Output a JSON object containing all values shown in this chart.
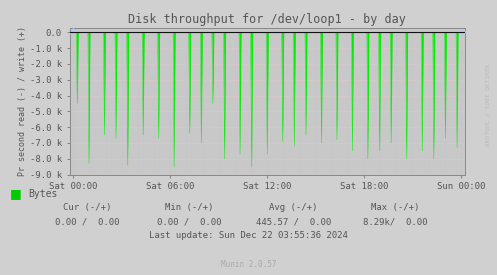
{
  "title": "Disk throughput for /dev/loop1 - by day",
  "ylabel": "Pr second read (-) / write (+)",
  "ylim": [
    -9000,
    300
  ],
  "yticks": [
    0,
    -1000,
    -2000,
    -3000,
    -4000,
    -5000,
    -6000,
    -7000,
    -8000,
    -9000
  ],
  "ytick_labels": [
    "0.0",
    "-1.0 k",
    "-2.0 k",
    "-3.0 k",
    "-4.0 k",
    "-5.0 k",
    "-6.0 k",
    "-7.0 k",
    "-8.0 k",
    "-9.0 k"
  ],
  "xtick_positions": [
    0.0,
    0.25,
    0.5,
    0.75,
    1.0
  ],
  "xtick_labels": [
    "Sat 00:00",
    "Sat 06:00",
    "Sat 12:00",
    "Sat 18:00",
    "Sun 00:00"
  ],
  "bg_color": "#d0d0d0",
  "plot_bg_color": "#c8c8c8",
  "grid_h_color": "#e8c8c8",
  "grid_v_color": "#c0c0d8",
  "line_color": "#00ee00",
  "border_color": "#888888",
  "title_color": "#555555",
  "label_color": "#555555",
  "tick_color": "#555555",
  "watermark_color": "#bbbbbb",
  "legend_color": "#00cc00",
  "footer_munin_color": "#aaaaaa",
  "watermark": "RRDTOOL / TOBI OETIKER",
  "footer_munin": "Munin 2.0.57",
  "spike_positions": [
    0.01,
    0.04,
    0.08,
    0.11,
    0.14,
    0.18,
    0.22,
    0.26,
    0.3,
    0.33,
    0.36,
    0.39,
    0.43,
    0.46,
    0.5,
    0.54,
    0.57,
    0.6,
    0.64,
    0.68,
    0.72,
    0.76,
    0.79,
    0.82,
    0.86,
    0.9,
    0.93,
    0.96,
    0.99
  ],
  "spike_depths": [
    -4500,
    -8300,
    -6500,
    -6700,
    -8400,
    -6500,
    -6700,
    -8500,
    -6400,
    -7000,
    -4500,
    -8000,
    -7700,
    -8500,
    -7700,
    -6900,
    -7200,
    -6500,
    -7000,
    -6800,
    -7500,
    -8000,
    -7500,
    -7000,
    -8000,
    -7500,
    -8000,
    -6700,
    -7300
  ]
}
